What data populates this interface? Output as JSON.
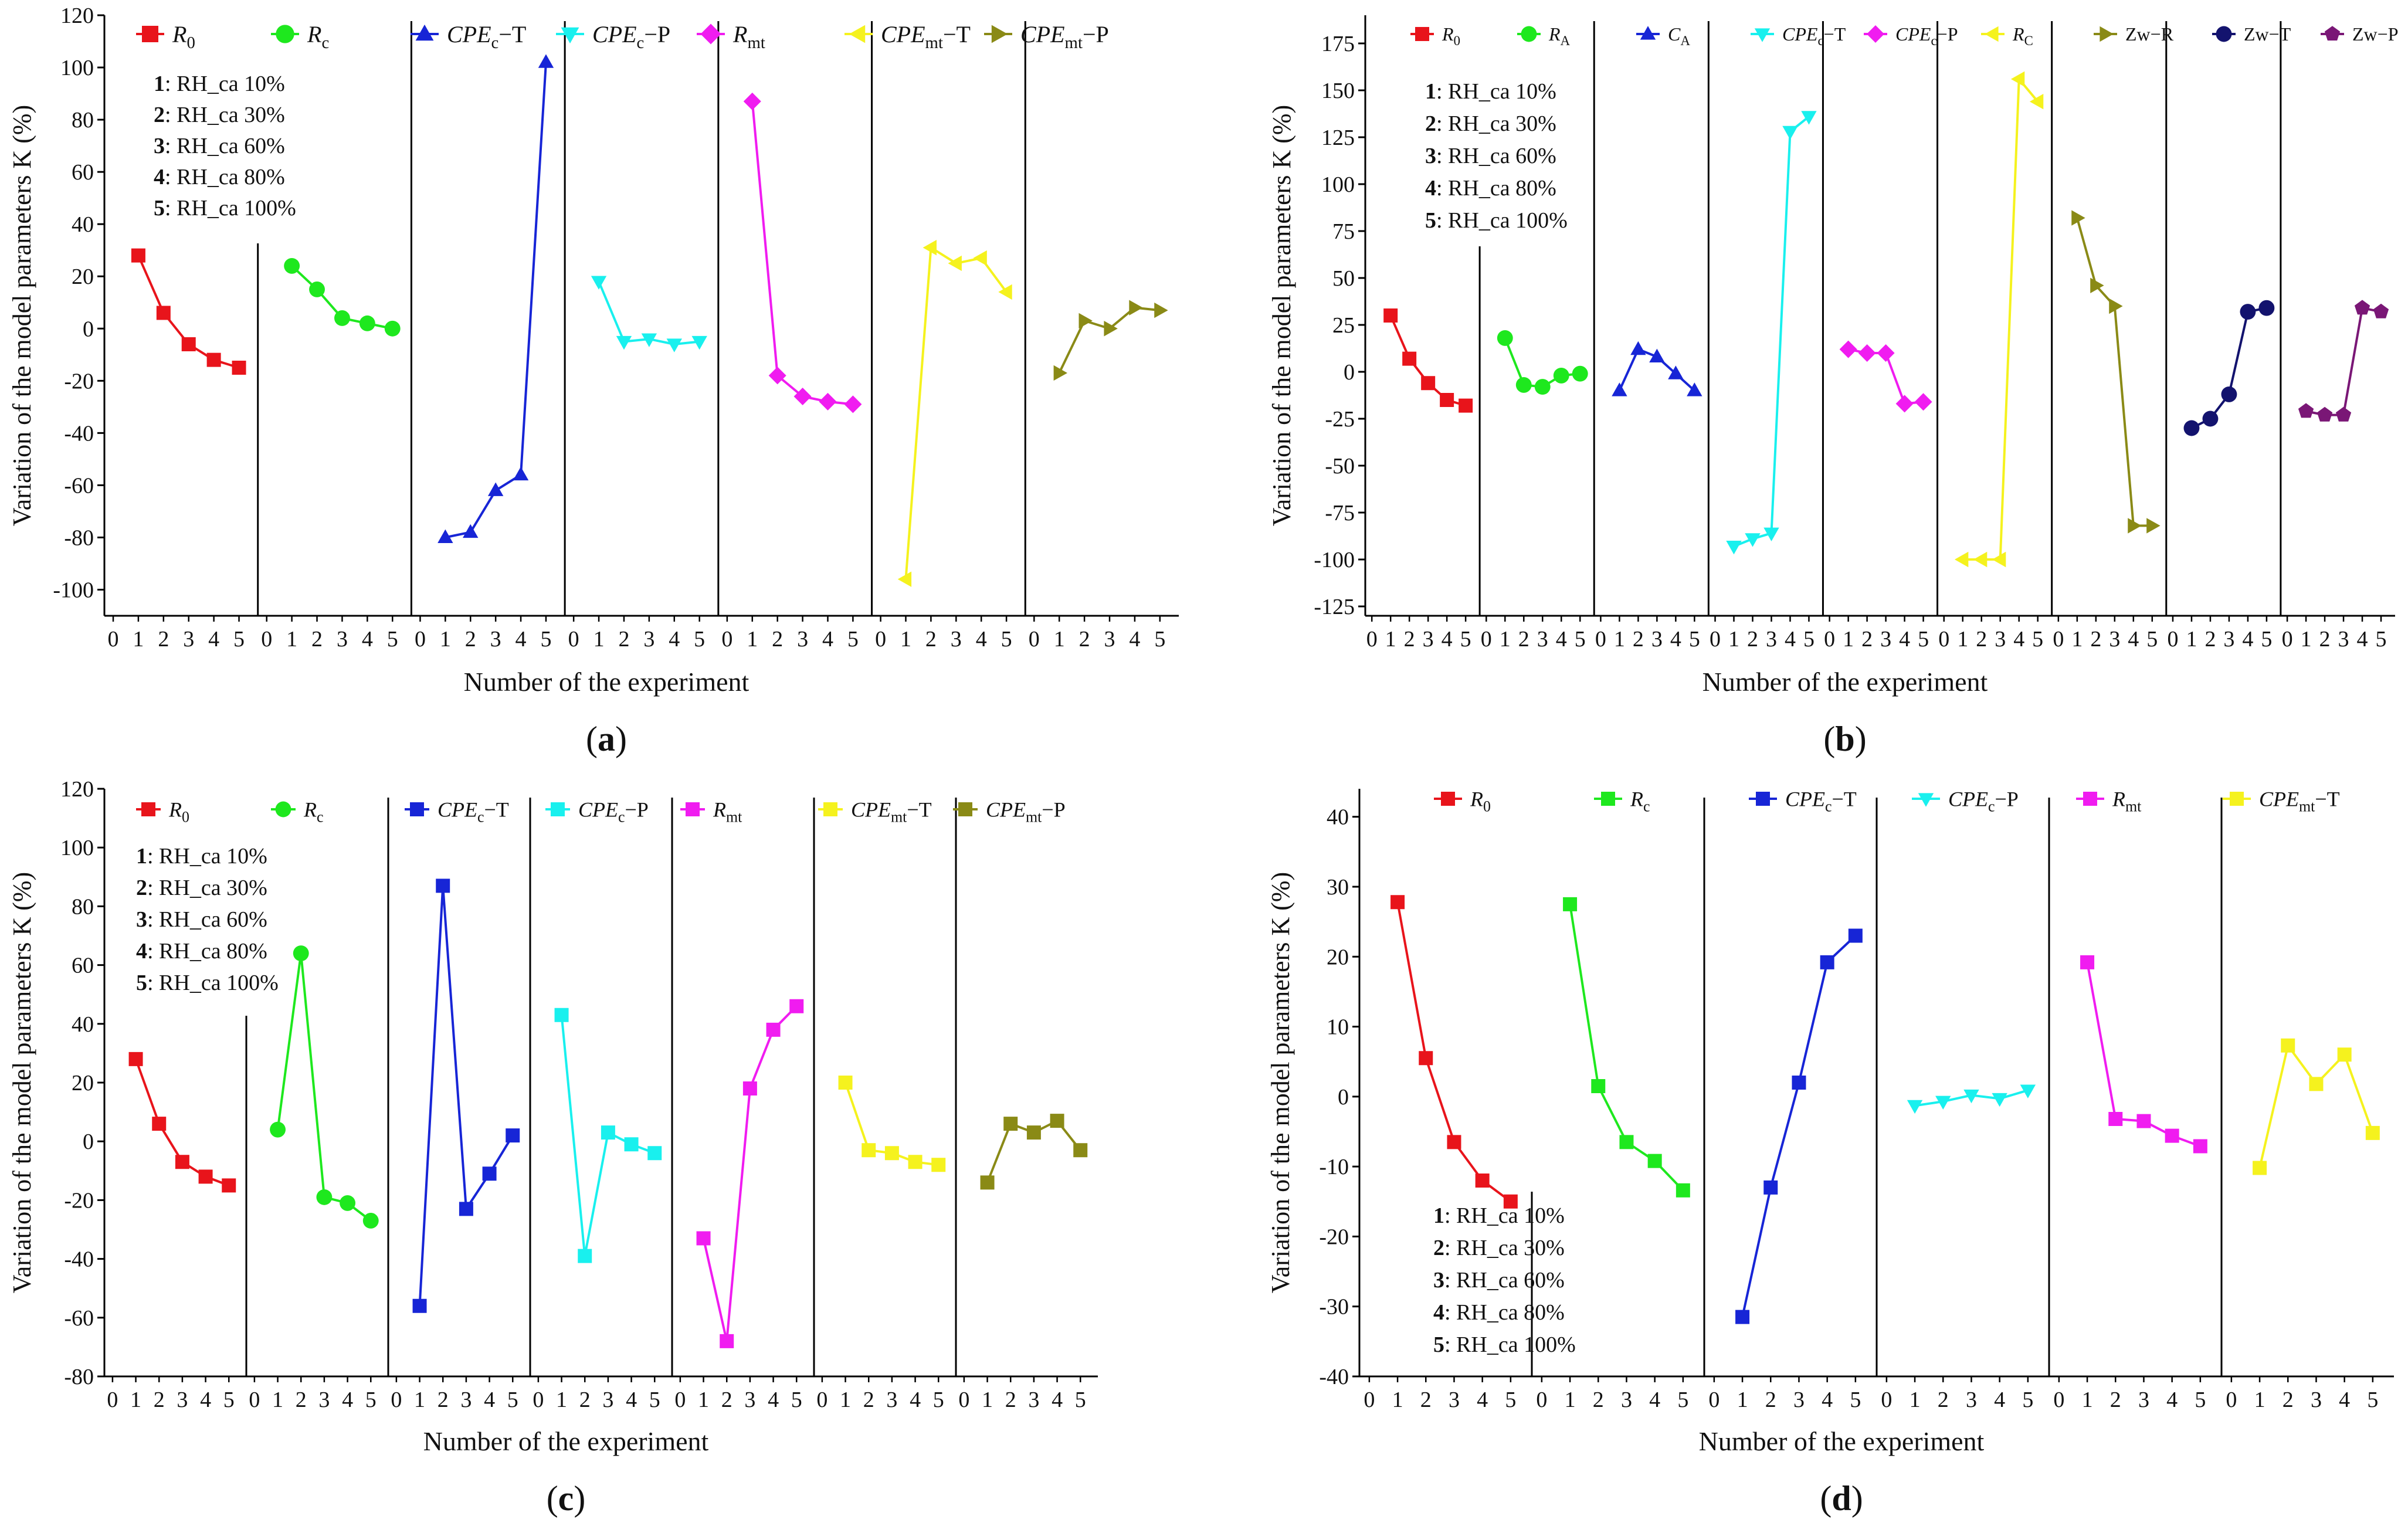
{
  "figure": {
    "legend_notes": [
      {
        "num": "1",
        "text": ": RH_ca 10%"
      },
      {
        "num": "2",
        "text": ": RH_ca 30%"
      },
      {
        "num": "3",
        "text": ": RH_ca 60%"
      },
      {
        "num": "4",
        "text": ": RH_ca 80%"
      },
      {
        "num": "5",
        "text": ": RH_ca 100%"
      }
    ]
  },
  "chart_data": [
    {
      "type": "line",
      "panel_label": "(a)",
      "xlabel": "Number of the experiment",
      "ylabel": "Variation of the model parameters K (%)",
      "ylim": [
        -110,
        120
      ],
      "yticks": [
        -100,
        -80,
        -60,
        -40,
        -20,
        0,
        20,
        40,
        60,
        80,
        100,
        120
      ],
      "x_tick_labels": [
        "0",
        "1",
        "2",
        "3",
        "4",
        "5"
      ],
      "x": [
        1,
        2,
        3,
        4,
        5
      ],
      "series": [
        {
          "name": "R0",
          "color": "#e8141b",
          "marker": "square",
          "values": [
            28,
            6,
            -6,
            -12,
            -15
          ]
        },
        {
          "name": "Rc",
          "color": "#1ee81e",
          "marker": "circle",
          "values": [
            24,
            15,
            4,
            2,
            0
          ]
        },
        {
          "name": "CPEc-T",
          "color": "#1725d6",
          "marker": "triangle-up",
          "values": [
            -80,
            -78,
            -62,
            -56,
            102
          ]
        },
        {
          "name": "CPEc-P",
          "color": "#19f0ee",
          "marker": "triangle-down",
          "values": [
            18,
            -5,
            -4,
            -6,
            -5
          ]
        },
        {
          "name": "Rmt",
          "color": "#f01cf0",
          "marker": "diamond",
          "values": [
            87,
            -18,
            -26,
            -28,
            -29
          ]
        },
        {
          "name": "CPEmt-T",
          "color": "#f5f21e",
          "marker": "triangle-left",
          "values": [
            -96,
            31,
            25,
            27,
            14
          ]
        },
        {
          "name": "CPEmt-P",
          "color": "#8a8a16",
          "marker": "triangle-right",
          "values": [
            -17,
            3,
            0,
            8,
            7
          ]
        }
      ]
    },
    {
      "type": "line",
      "panel_label": "(b)",
      "xlabel": "Number of the experiment",
      "ylabel": "Variation of the model parameters K (%)",
      "ylim": [
        -130,
        190
      ],
      "yticks": [
        -125,
        -100,
        -75,
        -50,
        -25,
        0,
        25,
        50,
        75,
        100,
        125,
        150,
        175
      ],
      "x_tick_labels": [
        "0",
        "1",
        "2",
        "3",
        "4",
        "5"
      ],
      "x": [
        1,
        2,
        3,
        4,
        5
      ],
      "series": [
        {
          "name": "R0",
          "color": "#e8141b",
          "marker": "square",
          "values": [
            30,
            7,
            -6,
            -15,
            -18
          ]
        },
        {
          "name": "RA",
          "color": "#1ee81e",
          "marker": "circle",
          "values": [
            18,
            -7,
            -8,
            -2,
            -1
          ]
        },
        {
          "name": "CA",
          "color": "#1725d6",
          "marker": "triangle-up",
          "values": [
            -10,
            12,
            8,
            -1,
            -10
          ]
        },
        {
          "name": "CPEc-T",
          "color": "#19f0ee",
          "marker": "triangle-down",
          "values": [
            -93,
            -89,
            -86,
            128,
            136
          ]
        },
        {
          "name": "CPEc-P",
          "color": "#f01cf0",
          "marker": "diamond",
          "values": [
            12,
            10,
            10,
            -17,
            -16
          ]
        },
        {
          "name": "RC",
          "color": "#f5f21e",
          "marker": "triangle-left",
          "values": [
            -100,
            -100,
            -100,
            156,
            144
          ]
        },
        {
          "name": "Zw-R",
          "color": "#8a8a16",
          "marker": "triangle-right",
          "values": [
            82,
            46,
            35,
            -82,
            -82
          ]
        },
        {
          "name": "Zw-T",
          "color": "#13136e",
          "marker": "circle",
          "values": [
            -30,
            -25,
            -12,
            32,
            34
          ]
        },
        {
          "name": "Zw-P",
          "color": "#7a1776",
          "marker": "pentagon",
          "values": [
            -21,
            -23,
            -23,
            34,
            32
          ]
        }
      ]
    },
    {
      "type": "line",
      "panel_label": "(c)",
      "xlabel": "Number of the experiment",
      "ylabel": "Variation of the model parameters K (%)",
      "ylim": [
        -80,
        120
      ],
      "yticks": [
        -80,
        -60,
        -40,
        -20,
        0,
        20,
        40,
        60,
        80,
        100,
        120
      ],
      "x_tick_labels": [
        "0",
        "1",
        "2",
        "3",
        "4",
        "5"
      ],
      "x": [
        1,
        2,
        3,
        4,
        5
      ],
      "series": [
        {
          "name": "R0",
          "color": "#e8141b",
          "marker": "square",
          "values": [
            28,
            6,
            -7,
            -12,
            -15
          ]
        },
        {
          "name": "Rc",
          "color": "#1ee81e",
          "marker": "circle",
          "values": [
            4,
            64,
            -19,
            -21,
            -27
          ]
        },
        {
          "name": "CPEc-T",
          "color": "#1725d6",
          "marker": "square",
          "values": [
            -56,
            87,
            -23,
            -11,
            2
          ]
        },
        {
          "name": "CPEc-P",
          "color": "#19f0ee",
          "marker": "square",
          "values": [
            43,
            -39,
            3,
            -1,
            -4
          ]
        },
        {
          "name": "Rmt",
          "color": "#f01cf0",
          "marker": "square",
          "values": [
            -33,
            -68,
            18,
            38,
            46
          ]
        },
        {
          "name": "CPEmt-T",
          "color": "#f5f21e",
          "marker": "square",
          "values": [
            20,
            -3,
            -4,
            -7,
            -8
          ]
        },
        {
          "name": "CPEmt-P",
          "color": "#8a8a16",
          "marker": "square",
          "values": [
            -14,
            6,
            3,
            7,
            -3
          ]
        }
      ]
    },
    {
      "type": "line",
      "panel_label": "(d)",
      "xlabel": "Number of the experiment",
      "ylabel": "Variation of the model parameters K (%)",
      "ylim": [
        -40,
        44
      ],
      "yticks": [
        -40,
        -30,
        -20,
        -10,
        0,
        10,
        20,
        30,
        40
      ],
      "x_tick_labels": [
        "0",
        "1",
        "2",
        "3",
        "4",
        "5"
      ],
      "x": [
        1,
        2,
        3,
        4,
        5
      ],
      "series": [
        {
          "name": "R0",
          "color": "#e8141b",
          "marker": "square",
          "values": [
            27.8,
            5.5,
            -6.5,
            -12,
            -15
          ]
        },
        {
          "name": "Rc",
          "color": "#1ee81e",
          "marker": "square",
          "values": [
            27.5,
            1.5,
            -6.5,
            -9.2,
            -13.4
          ]
        },
        {
          "name": "CPEc-T",
          "color": "#1725d6",
          "marker": "square",
          "values": [
            -31.5,
            -13,
            2,
            19.2,
            23
          ]
        },
        {
          "name": "CPEc-P",
          "color": "#19f0ee",
          "marker": "triangle-down",
          "values": [
            -1.3,
            -0.7,
            0.2,
            -0.3,
            0.9
          ]
        },
        {
          "name": "Rmt",
          "color": "#f01cf0",
          "marker": "square",
          "values": [
            19.2,
            -3.2,
            -3.5,
            -5.6,
            -7.1
          ]
        },
        {
          "name": "CPEmt-T",
          "color": "#f5f21e",
          "marker": "square",
          "values": [
            -10.2,
            7.3,
            1.8,
            6,
            -5.2
          ]
        }
      ]
    }
  ]
}
